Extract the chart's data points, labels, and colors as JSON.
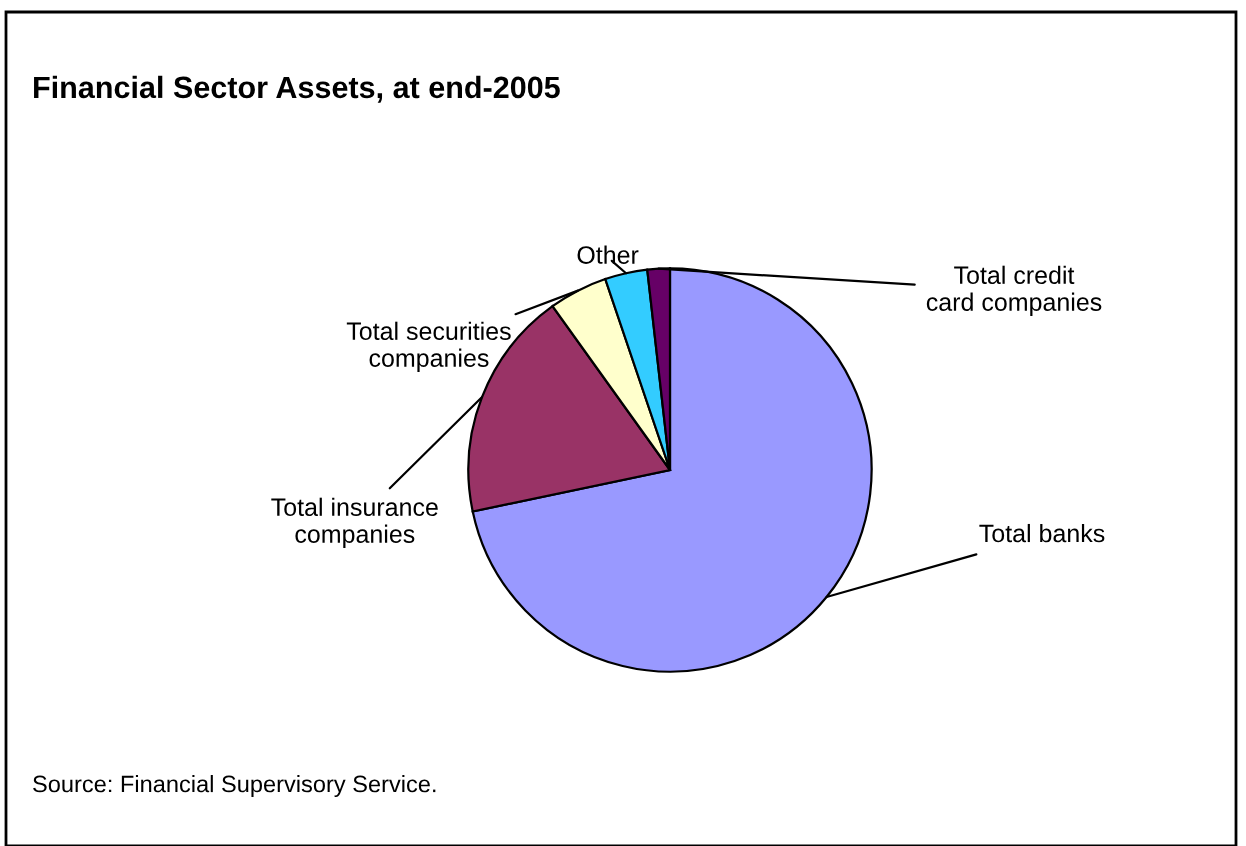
{
  "chart_data": {
    "type": "pie",
    "title": "Financial Sector Assets, at end-2005",
    "categories": [
      "Total banks",
      "Total insurance companies",
      "Total securities companies",
      "Other",
      "Total credit card companies"
    ],
    "values": [
      71.7,
      18.4,
      4.7,
      3.4,
      1.8
    ],
    "colors": [
      "#9999ff",
      "#993366",
      "#ffffcc",
      "#33ccff",
      "#660066"
    ],
    "annotations": [
      "Source: Financial Supervisory Service."
    ]
  }
}
